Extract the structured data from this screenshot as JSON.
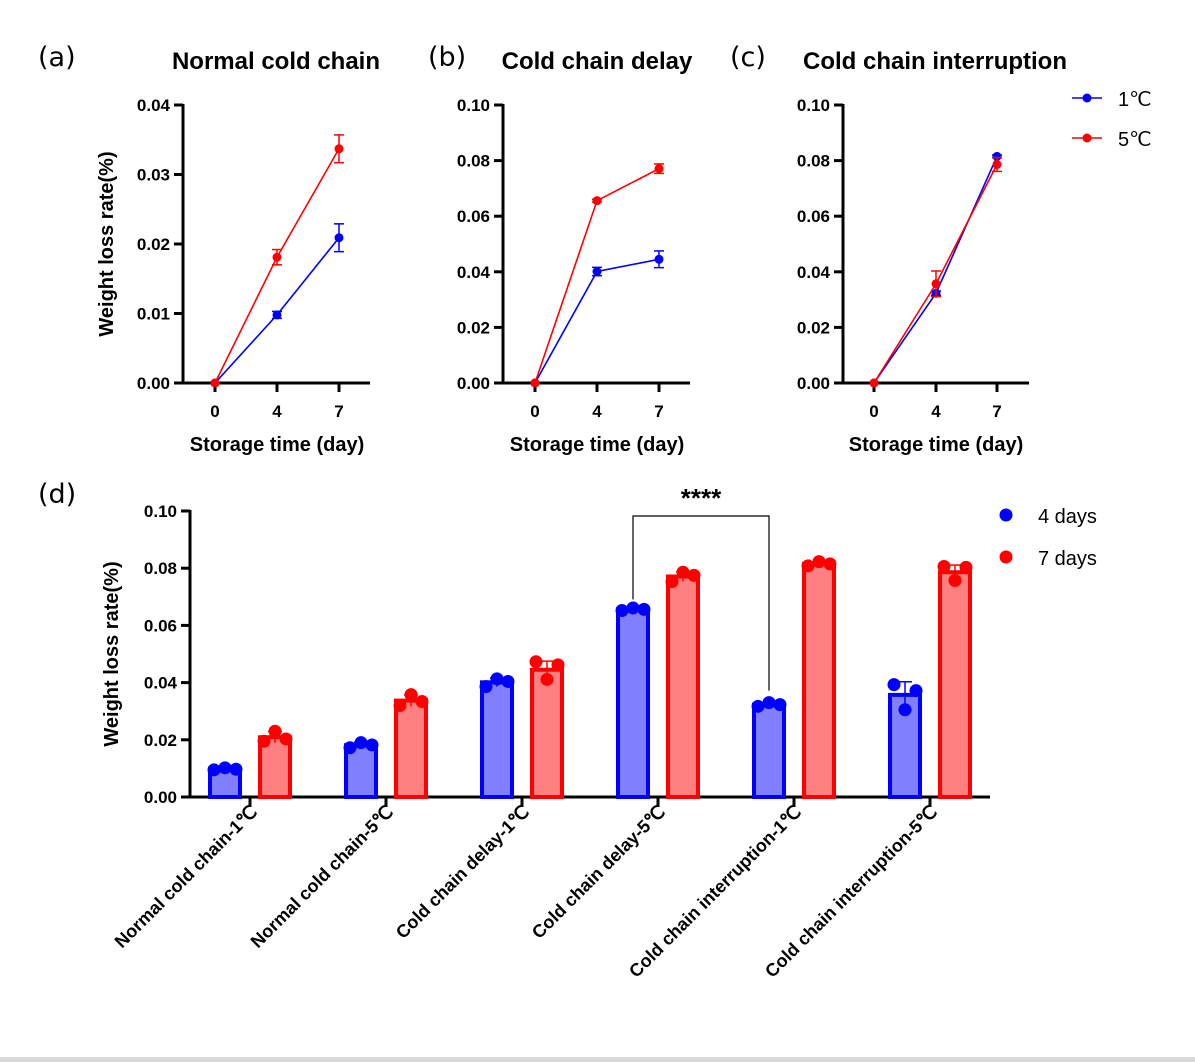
{
  "figure": {
    "colors": {
      "series_1C": "#0000ff",
      "series_5C": "#ff0000",
      "bar_4days_fill": "#8080ff",
      "bar_7days_fill": "#ff8080",
      "axis": "#000000"
    }
  },
  "chart_data": [
    {
      "id": "a",
      "panel_label": "(a)",
      "type": "line",
      "title": "Normal cold chain",
      "xlabel": "Storage time (day)",
      "ylabel": "Weight loss rate(%)",
      "x": [
        0,
        4,
        7
      ],
      "x_tick_labels": [
        "0",
        "4",
        "7"
      ],
      "ylim": [
        0,
        0.04
      ],
      "y_ticks": [
        0,
        0.01,
        0.02,
        0.03,
        0.04
      ],
      "y_tick_labels": [
        "0.00",
        "0.01",
        "0.02",
        "0.03",
        "0.04"
      ],
      "grid": false,
      "series": [
        {
          "name": "1℃",
          "values": [
            0,
            0.0098,
            0.0209
          ],
          "errors": [
            0,
            0.0005,
            0.002
          ]
        },
        {
          "name": "5℃",
          "values": [
            0,
            0.0181,
            0.0337
          ],
          "errors": [
            0,
            0.0011,
            0.002
          ]
        }
      ]
    },
    {
      "id": "b",
      "panel_label": "(b)",
      "type": "line",
      "title": "Cold chain delay",
      "xlabel": "Storage time (day)",
      "ylabel": "",
      "x": [
        0,
        4,
        7
      ],
      "x_tick_labels": [
        "0",
        "4",
        "7"
      ],
      "ylim": [
        0,
        0.1
      ],
      "y_ticks": [
        0,
        0.02,
        0.04,
        0.06,
        0.08,
        0.1
      ],
      "y_tick_labels": [
        "0.00",
        "0.02",
        "0.04",
        "0.06",
        "0.08",
        "0.10"
      ],
      "grid": false,
      "series": [
        {
          "name": "1℃",
          "values": [
            0,
            0.0401,
            0.0445
          ],
          "errors": [
            0,
            0.0015,
            0.003
          ]
        },
        {
          "name": "5℃",
          "values": [
            0,
            0.0656,
            0.0771
          ],
          "errors": [
            0,
            0.0005,
            0.0017
          ]
        }
      ]
    },
    {
      "id": "c",
      "panel_label": "(c)",
      "type": "line",
      "title": "Cold chain interruption",
      "xlabel": "Storage time (day)",
      "ylabel": "",
      "x": [
        0,
        4,
        7
      ],
      "x_tick_labels": [
        "0",
        "4",
        "7"
      ],
      "ylim": [
        0,
        0.1
      ],
      "y_ticks": [
        0,
        0.02,
        0.04,
        0.06,
        0.08,
        0.1
      ],
      "y_tick_labels": [
        "0.00",
        "0.02",
        "0.04",
        "0.06",
        "0.08",
        "0.10"
      ],
      "grid": false,
      "legend": {
        "placement": "top-right",
        "entries": [
          "1℃",
          "5℃"
        ]
      },
      "series": [
        {
          "name": "1℃",
          "values": [
            0,
            0.0323,
            0.0815
          ],
          "errors": [
            0,
            0.0008,
            0.0005
          ]
        },
        {
          "name": "5℃",
          "values": [
            0,
            0.0357,
            0.0786
          ],
          "errors": [
            0,
            0.0046,
            0.0025
          ]
        }
      ]
    },
    {
      "id": "d",
      "panel_label": "(d)",
      "type": "bar",
      "title": "",
      "xlabel": "",
      "ylabel": "Weight loss rate(%)",
      "categories": [
        "Normal cold chain-1℃",
        "Normal cold chain-5℃",
        "Cold chain delay-1℃",
        "Cold chain delay-5℃",
        "Cold chain interruption-1℃",
        "Cold chain interruption-5℃"
      ],
      "ylim": [
        0,
        0.1
      ],
      "y_ticks": [
        0,
        0.02,
        0.04,
        0.06,
        0.08,
        0.1
      ],
      "y_tick_labels": [
        "0.00",
        "0.02",
        "0.04",
        "0.06",
        "0.08",
        "0.10"
      ],
      "grid": false,
      "legend": {
        "placement": "top-right",
        "entries": [
          "4 days",
          "7 days"
        ]
      },
      "series": [
        {
          "name": "4 days",
          "values": [
            0.0098,
            0.0181,
            0.0401,
            0.0656,
            0.0323,
            0.0357
          ],
          "errors": [
            0.0005,
            0.0011,
            0.0015,
            0.0005,
            0.0008,
            0.0046
          ],
          "points": [
            [
              0.0095,
              0.0102,
              0.0097
            ],
            [
              0.0172,
              0.019,
              0.0182
            ],
            [
              0.0386,
              0.0413,
              0.0404
            ],
            [
              0.0652,
              0.0661,
              0.0656
            ],
            [
              0.0317,
              0.033,
              0.0323
            ],
            [
              0.0393,
              0.0305,
              0.0372
            ]
          ]
        },
        {
          "name": "7 days",
          "values": [
            0.0209,
            0.0337,
            0.0445,
            0.0771,
            0.0815,
            0.0786
          ],
          "errors": [
            0.002,
            0.002,
            0.003,
            0.0017,
            0.0005,
            0.0025
          ],
          "points": [
            [
              0.0195,
              0.023,
              0.0203
            ],
            [
              0.032,
              0.0358,
              0.0334
            ],
            [
              0.0473,
              0.0411,
              0.0462
            ],
            [
              0.0753,
              0.0786,
              0.0775
            ],
            [
              0.0808,
              0.0823,
              0.0815
            ],
            [
              0.0806,
              0.0757,
              0.0803
            ]
          ]
        }
      ],
      "annotations": [
        {
          "text": "****",
          "from_category": "Cold chain delay-5℃",
          "to_category": "Cold chain interruption-1℃",
          "series": "4 days"
        }
      ]
    }
  ]
}
